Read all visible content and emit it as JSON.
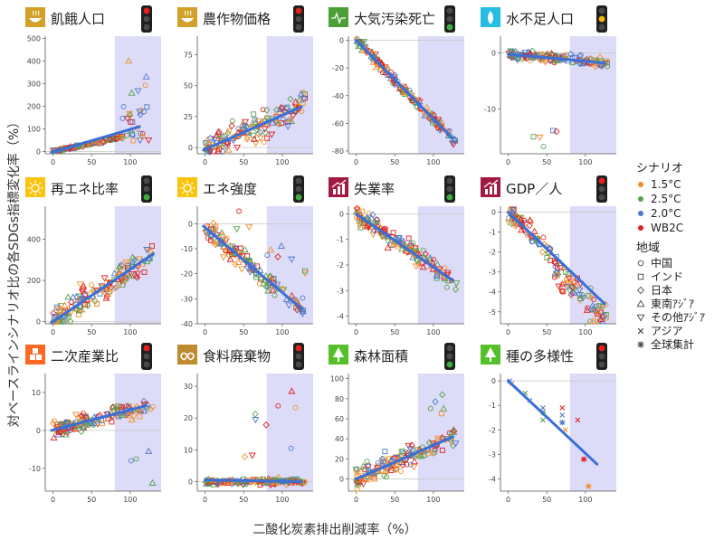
{
  "figure": {
    "xlabel": "二酸化炭素排出削減率（%）",
    "ylabel": "対ベースラインシナリオ比の各SDGs指標変化率（%）"
  },
  "legend": {
    "scenario_title": "シナリオ",
    "scenarios": [
      {
        "label": "1.5°C",
        "color": "#f28e2b"
      },
      {
        "label": "2.5°C",
        "color": "#59a14f"
      },
      {
        "label": "2.0°C",
        "color": "#4e79c7"
      },
      {
        "label": "WB2C",
        "color": "#e02020"
      }
    ],
    "region_title": "地域",
    "regions": [
      {
        "label": "中国",
        "marker": "circle"
      },
      {
        "label": "インド",
        "marker": "square"
      },
      {
        "label": "日本",
        "marker": "diamond"
      },
      {
        "label": "東南ｱｼﾞｱ",
        "marker": "triangle-up"
      },
      {
        "label": "その他ｱｼﾞｱ",
        "marker": "triangle-down"
      },
      {
        "label": "アジア",
        "marker": "cross"
      },
      {
        "label": "全球集計",
        "marker": "asterisk"
      }
    ]
  },
  "chart_data": [
    {
      "type": "scatter",
      "title": "飢餓人口",
      "icon": "sdg2-bowl-icon",
      "icon_color": "#d3a029",
      "signal": "red",
      "ylim": [
        -10,
        510
      ],
      "yticks": [
        0,
        100,
        200,
        300,
        400,
        500
      ],
      "xticks": [
        0,
        50,
        100
      ],
      "xlim": [
        -10,
        140
      ],
      "shade": [
        80,
        140
      ],
      "trend": [
        [
          -2,
          -5
        ],
        [
          112,
          110
        ]
      ],
      "pattern": "hunger"
    },
    {
      "type": "scatter",
      "title": "農作物価格",
      "icon": "sdg2-bowl-icon",
      "icon_color": "#d3a029",
      "signal": "red",
      "ylim": [
        -5,
        90
      ],
      "yticks": [
        0,
        25,
        50,
        75
      ],
      "xticks": [
        0,
        50,
        100
      ],
      "xlim": [
        -10,
        140
      ],
      "shade": [
        80,
        140
      ],
      "trend": [
        [
          -2,
          -2
        ],
        [
          125,
          33
        ]
      ],
      "pattern": "crop"
    },
    {
      "type": "scatter",
      "title": "大気汚染死亡",
      "icon": "sdg3-heart-icon",
      "icon_color": "#4c9f38",
      "signal": "green",
      "ylim": [
        -82,
        3
      ],
      "yticks": [
        0,
        -20,
        -40,
        -60,
        -80
      ],
      "xticks": [
        0,
        50,
        100
      ],
      "xlim": [
        -10,
        140
      ],
      "shade": [
        80,
        140
      ],
      "trend": [
        [
          0,
          0
        ],
        [
          125,
          -71
        ]
      ],
      "pattern": "air"
    },
    {
      "type": "scatter",
      "title": "水不足人口",
      "icon": "sdg6-water-icon",
      "icon_color": "#26bde2",
      "signal": "yellow",
      "ylim": [
        -18,
        3
      ],
      "yticks": [
        0,
        -10
      ],
      "xticks": [
        0,
        50,
        100
      ],
      "xlim": [
        -10,
        140
      ],
      "shade": [
        80,
        140
      ],
      "trend": [
        [
          0,
          -0.2
        ],
        [
          125,
          -1.8
        ]
      ],
      "pattern": "water"
    },
    {
      "type": "scatter",
      "title": "再エネ比率",
      "icon": "sdg7-sun-icon",
      "icon_color": "#fcc30b",
      "signal": "green",
      "ylim": [
        -10,
        560
      ],
      "yticks": [
        0,
        200,
        400
      ],
      "xticks": [
        0,
        50,
        100
      ],
      "xlim": [
        -10,
        140
      ],
      "shade": [
        80,
        140
      ],
      "trend": [
        [
          -2,
          -5
        ],
        [
          130,
          330
        ]
      ],
      "pattern": "renew"
    },
    {
      "type": "scatter",
      "title": "エネ強度",
      "icon": "sdg7-sun-icon",
      "icon_color": "#fcc30b",
      "signal": "green",
      "ylim": [
        -40,
        7
      ],
      "yticks": [
        0,
        -10,
        -20,
        -30,
        -40
      ],
      "xticks": [
        0,
        50,
        100
      ],
      "xlim": [
        -10,
        140
      ],
      "shade": [
        80,
        140
      ],
      "trend": [
        [
          -2,
          -1
        ],
        [
          125,
          -34
        ]
      ],
      "pattern": "energy"
    },
    {
      "type": "scatter",
      "title": "失業率",
      "icon": "sdg8-chart-icon",
      "icon_color": "#a21942",
      "signal": "green",
      "ylim": [
        -4.3,
        0.3
      ],
      "yticks": [
        0,
        -1,
        -2,
        -3,
        -4
      ],
      "xticks": [
        0,
        50,
        100
      ],
      "xlim": [
        -10,
        140
      ],
      "shade": [
        80,
        140
      ],
      "trend": [
        [
          0,
          0
        ],
        [
          125,
          -2.6
        ]
      ],
      "pattern": "unemp"
    },
    {
      "type": "scatter",
      "title": "GDP／人",
      "icon": "sdg8-chart-icon",
      "icon_color": "#a21942",
      "signal": "red",
      "ylim": [
        -5.6,
        0.3
      ],
      "yticks": [
        0,
        -1,
        -2,
        -3,
        -4,
        -5
      ],
      "xticks": [
        0,
        50,
        100
      ],
      "xlim": [
        -10,
        140
      ],
      "shade": [
        80,
        140
      ],
      "trend": [
        [
          0,
          0
        ],
        [
          125,
          -4.6
        ]
      ],
      "pattern": "gdp"
    },
    {
      "type": "scatter",
      "title": "二次産業比",
      "icon": "sdg9-cubes-icon",
      "icon_color": "#fd6925",
      "signal": "red",
      "ylim": [
        -16,
        15
      ],
      "yticks": [
        10,
        0,
        -10
      ],
      "xticks": [
        0,
        50,
        100
      ],
      "xlim": [
        -10,
        140
      ],
      "shade": [
        80,
        140
      ],
      "trend": [
        [
          -2,
          0
        ],
        [
          120,
          6.5
        ]
      ],
      "pattern": "industry"
    },
    {
      "type": "scatter",
      "title": "食料廃棄物",
      "icon": "sdg12-infinity-icon",
      "icon_color": "#bf8b2e",
      "signal": "red",
      "ylim": [
        -3,
        34
      ],
      "yticks": [
        0,
        10,
        20,
        30
      ],
      "xticks": [
        0,
        50,
        100
      ],
      "xlim": [
        -10,
        140
      ],
      "shade": [
        80,
        140
      ],
      "trend": [
        [
          0,
          0.5
        ],
        [
          125,
          0
        ]
      ],
      "pattern": "waste"
    },
    {
      "type": "scatter",
      "title": "森林面積",
      "icon": "sdg15-tree-icon",
      "icon_color": "#56c02b",
      "signal": "green",
      "ylim": [
        -12,
        105
      ],
      "yticks": [
        0,
        20,
        40,
        60,
        80,
        100
      ],
      "xticks": [
        0,
        50,
        100
      ],
      "xlim": [
        -10,
        140
      ],
      "shade": [
        80,
        140
      ],
      "trend": [
        [
          0,
          0
        ],
        [
          125,
          42
        ]
      ],
      "pattern": "forest"
    },
    {
      "type": "scatter",
      "title": "種の多様性",
      "icon": "sdg15-tree-icon",
      "icon_color": "#56c02b",
      "signal": "red",
      "ylim": [
        -4.5,
        0.3
      ],
      "yticks": [
        0,
        -1,
        -2,
        -3,
        -4
      ],
      "xticks": [
        0,
        50,
        100
      ],
      "xlim": [
        -10,
        140
      ],
      "shade": [
        80,
        140
      ],
      "trend": [
        [
          0,
          0
        ],
        [
          115,
          -3.4
        ]
      ],
      "pattern": "bio",
      "points": [
        {
          "x": 2,
          "y": 0,
          "color": "#4e79c7",
          "marker": "cross"
        },
        {
          "x": 5,
          "y": -0.1,
          "color": "#f28e2b",
          "marker": "cross"
        },
        {
          "x": 22,
          "y": -0.5,
          "color": "#59a14f",
          "marker": "cross"
        },
        {
          "x": 28,
          "y": -0.8,
          "color": "#4e79c7",
          "marker": "cross"
        },
        {
          "x": 45,
          "y": -1.1,
          "color": "#4e79c7",
          "marker": "cross"
        },
        {
          "x": 45,
          "y": -1.3,
          "color": "#59a14f",
          "marker": "asterisk"
        },
        {
          "x": 45,
          "y": -1.6,
          "color": "#59a14f",
          "marker": "cross"
        },
        {
          "x": 70,
          "y": -1.1,
          "color": "#e02020",
          "marker": "cross"
        },
        {
          "x": 70,
          "y": -1.4,
          "color": "#4e79c7",
          "marker": "cross"
        },
        {
          "x": 70,
          "y": -1.7,
          "color": "#4e79c7",
          "marker": "asterisk"
        },
        {
          "x": 74,
          "y": -2.0,
          "color": "#f28e2b",
          "marker": "cross"
        },
        {
          "x": 90,
          "y": -1.6,
          "color": "#e02020",
          "marker": "cross"
        },
        {
          "x": 98,
          "y": -3.2,
          "color": "#e02020",
          "marker": "asterisk"
        },
        {
          "x": 104,
          "y": -4.3,
          "color": "#f28e2b",
          "marker": "asterisk"
        }
      ]
    }
  ]
}
